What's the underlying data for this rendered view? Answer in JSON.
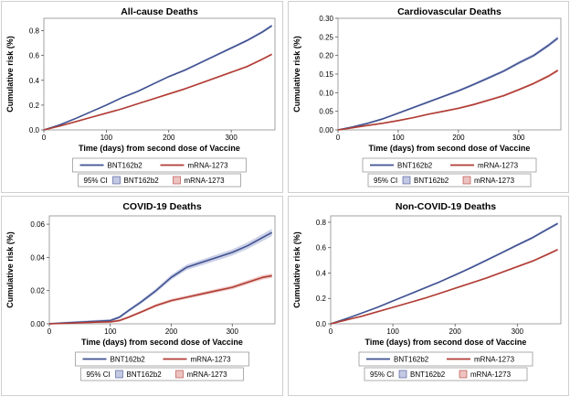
{
  "colors": {
    "bnt": "#3f5190",
    "bnt_ci": "#c3c9e3",
    "mrna": "#b03c34",
    "mrna_ci": "#ecc3c1"
  },
  "chart_data": [
    {
      "type": "line",
      "title": "All-cause Deaths",
      "xlabel": "Time (days) from second dose of Vaccine",
      "ylabel": "Cumulative risk (%)",
      "xlim": [
        0,
        370
      ],
      "ylim": [
        0,
        0.9
      ],
      "xticks": [
        "0",
        "100",
        "200",
        "300"
      ],
      "yticks": [
        "0.0",
        "0.2",
        "0.4",
        "0.6",
        "0.8"
      ],
      "legend": {
        "ci_label": "95% CI"
      },
      "series": [
        {
          "name": "BNT162b2",
          "ci": 0.012,
          "x": [
            0,
            25,
            50,
            75,
            100,
            125,
            150,
            175,
            200,
            225,
            250,
            275,
            300,
            325,
            350,
            365
          ],
          "y": [
            0,
            0.04,
            0.09,
            0.145,
            0.2,
            0.26,
            0.31,
            0.37,
            0.43,
            0.48,
            0.54,
            0.6,
            0.66,
            0.72,
            0.79,
            0.84
          ]
        },
        {
          "name": "mRNA-1273",
          "ci": 0.012,
          "x": [
            0,
            25,
            50,
            75,
            100,
            125,
            150,
            175,
            200,
            225,
            250,
            275,
            300,
            325,
            350,
            365
          ],
          "y": [
            0,
            0.03,
            0.065,
            0.1,
            0.135,
            0.17,
            0.21,
            0.25,
            0.29,
            0.33,
            0.375,
            0.42,
            0.465,
            0.51,
            0.57,
            0.61
          ]
        }
      ]
    },
    {
      "type": "line",
      "title": "Cardiovascular Deaths",
      "xlabel": "Time (days) from second dose of Vaccine",
      "ylabel": "Cumulative risk (%)",
      "xlim": [
        0,
        370
      ],
      "ylim": [
        0,
        0.3
      ],
      "xticks": [
        "0",
        "100",
        "200",
        "300"
      ],
      "yticks": [
        "0.00",
        "0.05",
        "0.10",
        "0.15",
        "0.20",
        "0.25",
        "0.30"
      ],
      "legend": {
        "ci_label": "95% CI"
      },
      "series": [
        {
          "name": "BNT162b2",
          "ci": 0.006,
          "x": [
            0,
            25,
            50,
            75,
            100,
            125,
            150,
            175,
            200,
            225,
            250,
            275,
            300,
            325,
            350,
            365
          ],
          "y": [
            0,
            0.008,
            0.018,
            0.03,
            0.045,
            0.06,
            0.075,
            0.09,
            0.105,
            0.122,
            0.14,
            0.158,
            0.18,
            0.2,
            0.228,
            0.247
          ]
        },
        {
          "name": "mRNA-1273",
          "ci": 0.006,
          "x": [
            0,
            25,
            50,
            75,
            100,
            125,
            150,
            175,
            200,
            225,
            250,
            275,
            300,
            325,
            350,
            365
          ],
          "y": [
            0,
            0.006,
            0.012,
            0.018,
            0.025,
            0.033,
            0.042,
            0.05,
            0.058,
            0.068,
            0.08,
            0.092,
            0.108,
            0.125,
            0.145,
            0.16
          ]
        }
      ]
    },
    {
      "type": "line",
      "title": "COVID-19 Deaths",
      "xlabel": "Time (days) from second dose of Vaccine",
      "ylabel": "Cumulative risk (%)",
      "xlim": [
        0,
        370
      ],
      "ylim": [
        0,
        0.065
      ],
      "xticks": [
        "0",
        "100",
        "200",
        "300"
      ],
      "yticks": [
        "0.00",
        "0.02",
        "0.04",
        "0.06"
      ],
      "legend": {
        "ci_label": "95% CI"
      },
      "series": [
        {
          "name": "BNT162b2",
          "ci": 0.0025,
          "x": [
            0,
            25,
            50,
            75,
            100,
            115,
            130,
            150,
            175,
            200,
            225,
            250,
            275,
            300,
            325,
            350,
            365
          ],
          "y": [
            0,
            0.0005,
            0.001,
            0.0015,
            0.002,
            0.004,
            0.008,
            0.013,
            0.02,
            0.028,
            0.034,
            0.037,
            0.04,
            0.043,
            0.047,
            0.052,
            0.055
          ]
        },
        {
          "name": "mRNA-1273",
          "ci": 0.0022,
          "x": [
            0,
            25,
            50,
            75,
            100,
            115,
            130,
            150,
            175,
            200,
            225,
            250,
            275,
            300,
            325,
            350,
            365
          ],
          "y": [
            0,
            0.0003,
            0.0006,
            0.001,
            0.0012,
            0.002,
            0.004,
            0.007,
            0.011,
            0.014,
            0.016,
            0.018,
            0.02,
            0.022,
            0.025,
            0.028,
            0.029
          ]
        }
      ]
    },
    {
      "type": "line",
      "title": "Non-COVID-19 Deaths",
      "xlabel": "Time (days) from second dose of Vaccine",
      "ylabel": "Cumulative risk (%)",
      "xlim": [
        0,
        370
      ],
      "ylim": [
        0,
        0.85
      ],
      "xticks": [
        "0",
        "100",
        "200",
        "300"
      ],
      "yticks": [
        "0.0",
        "0.2",
        "0.4",
        "0.6",
        "0.8"
      ],
      "legend": {
        "ci_label": "95% CI"
      },
      "series": [
        {
          "name": "BNT162b2",
          "ci": 0.012,
          "x": [
            0,
            25,
            50,
            75,
            100,
            125,
            150,
            175,
            200,
            225,
            250,
            275,
            300,
            325,
            350,
            365
          ],
          "y": [
            0,
            0.04,
            0.085,
            0.13,
            0.18,
            0.23,
            0.28,
            0.33,
            0.385,
            0.44,
            0.5,
            0.56,
            0.62,
            0.68,
            0.75,
            0.79
          ]
        },
        {
          "name": "mRNA-1273",
          "ci": 0.012,
          "x": [
            0,
            25,
            50,
            75,
            100,
            125,
            150,
            175,
            200,
            225,
            250,
            275,
            300,
            325,
            350,
            365
          ],
          "y": [
            0,
            0.03,
            0.06,
            0.095,
            0.13,
            0.165,
            0.2,
            0.24,
            0.28,
            0.32,
            0.36,
            0.405,
            0.45,
            0.495,
            0.55,
            0.585
          ]
        }
      ]
    }
  ]
}
